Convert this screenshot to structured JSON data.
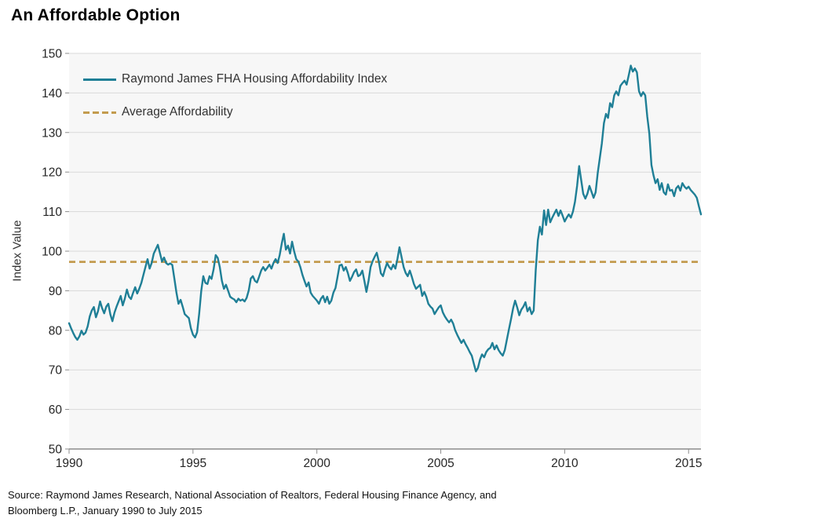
{
  "page": {
    "title": "An Affordable Option",
    "source_line1": "Source: Raymond James Research, National Association of Realtors, Federal Housing Finance Agency, and",
    "source_line2": "Bloomberg L.P., January 1990 to July 2015"
  },
  "chart_data": {
    "type": "line",
    "title": "An Affordable Option",
    "xlabel": "",
    "ylabel": "Index Value",
    "xlim": [
      1990.0,
      2015.5
    ],
    "ylim": [
      50,
      150
    ],
    "x_ticks": [
      1990,
      1995,
      2000,
      2005,
      2010,
      2015
    ],
    "y_ticks": [
      50,
      60,
      70,
      80,
      90,
      100,
      110,
      120,
      130,
      140,
      150
    ],
    "grid": true,
    "legend_position": "top-left-inside",
    "colors": {
      "line": "#1f7f96",
      "average": "#c39b4e",
      "plot_bg": "#f7f7f7",
      "grid": "#d9d9d9",
      "axis": "#8c8c8c"
    },
    "series": [
      {
        "name": "Raymond James FHA Housing Affordability Index",
        "color": "#1f7f96",
        "style": "solid",
        "frequency": "monthly",
        "x_start": 1990.0,
        "x_step": 0.0833333,
        "values": [
          81.8,
          80.5,
          79.3,
          78.3,
          77.6,
          78.5,
          79.9,
          78.9,
          79.4,
          81.0,
          83.5,
          85.0,
          85.9,
          83.3,
          84.8,
          87.3,
          85.6,
          84.3,
          86.0,
          86.7,
          84.0,
          82.3,
          84.5,
          86.0,
          87.3,
          88.7,
          86.3,
          88.0,
          90.3,
          88.5,
          87.9,
          89.5,
          90.9,
          89.3,
          90.5,
          92.0,
          94.0,
          96.0,
          98.0,
          95.6,
          97.0,
          99.4,
          100.5,
          101.6,
          99.5,
          97.4,
          98.4,
          97.0,
          96.6,
          96.9,
          96.5,
          93.0,
          89.5,
          86.7,
          87.7,
          86.0,
          84.1,
          83.6,
          83.1,
          80.5,
          78.9,
          78.2,
          79.5,
          84.1,
          90.0,
          93.7,
          92.0,
          91.7,
          93.7,
          93.0,
          95.5,
          99.0,
          98.3,
          96.0,
          92.5,
          90.5,
          91.5,
          90.0,
          88.5,
          88.1,
          87.8,
          87.1,
          88.0,
          87.5,
          87.8,
          87.3,
          88.2,
          90.1,
          93.1,
          93.7,
          92.5,
          92.1,
          93.5,
          95.1,
          96.0,
          95.1,
          95.8,
          96.6,
          95.6,
          97.0,
          98.0,
          97.0,
          99.0,
          102.0,
          104.4,
          100.4,
          101.4,
          99.4,
          102.4,
          100.0,
          98.0,
          97.4,
          96.0,
          94.0,
          92.5,
          91.1,
          92.1,
          89.5,
          88.7,
          88.1,
          87.5,
          86.7,
          88.0,
          88.7,
          87.1,
          88.5,
          86.7,
          87.5,
          89.5,
          90.7,
          93.5,
          96.4,
          96.6,
          95.1,
          96.0,
          94.5,
          92.5,
          93.5,
          94.7,
          95.4,
          93.7,
          94.0,
          95.1,
          92.5,
          89.7,
          92.5,
          96.0,
          97.5,
          98.6,
          99.6,
          97.4,
          94.4,
          93.7,
          95.5,
          97.0,
          96.0,
          95.4,
          96.6,
          95.6,
          98.0,
          101.0,
          98.6,
          96.0,
          94.5,
          93.7,
          95.1,
          93.5,
          91.7,
          90.5,
          91.0,
          91.5,
          88.7,
          89.7,
          88.5,
          86.7,
          86.0,
          85.5,
          84.1,
          85.0,
          85.8,
          86.3,
          84.5,
          83.5,
          82.7,
          82.0,
          82.7,
          81.7,
          80.0,
          78.8,
          77.8,
          76.8,
          77.6,
          76.5,
          75.6,
          74.5,
          73.6,
          71.6,
          69.6,
          70.5,
          72.6,
          73.9,
          73.2,
          74.5,
          75.2,
          75.6,
          76.8,
          75.2,
          76.2,
          75.0,
          74.2,
          73.6,
          75.0,
          77.6,
          80.2,
          82.8,
          85.5,
          87.5,
          85.8,
          83.8,
          85.2,
          86.0,
          87.1,
          84.8,
          85.8,
          84.1,
          85.0,
          95.2,
          102.8,
          106.2,
          104.2,
          110.3,
          106.6,
          110.5,
          107.3,
          108.5,
          109.5,
          110.5,
          108.9,
          110.3,
          109.0,
          107.5,
          108.5,
          109.3,
          108.5,
          110.0,
          112.5,
          116.5,
          121.5,
          118.0,
          114.5,
          113.3,
          114.5,
          116.5,
          115.0,
          113.5,
          114.9,
          119.8,
          123.5,
          127.2,
          132.4,
          134.7,
          133.7,
          137.4,
          136.4,
          139.4,
          140.4,
          139.4,
          141.8,
          142.5,
          143.1,
          142.1,
          144.4,
          146.9,
          145.4,
          146.2,
          145.2,
          140.4,
          139.2,
          140.2,
          139.4,
          134.0,
          129.8,
          121.8,
          119.2,
          117.2,
          118.2,
          115.5,
          117.2,
          114.9,
          114.3,
          116.9,
          115.3,
          115.5,
          113.9,
          115.9,
          116.5,
          115.3,
          117.2,
          116.3,
          115.8,
          116.3,
          115.5,
          114.9,
          114.3,
          113.5,
          111.3,
          109.3
        ]
      },
      {
        "name": "Average Affordability",
        "color": "#c39b4e",
        "style": "dashed",
        "value": 97.3
      }
    ]
  }
}
